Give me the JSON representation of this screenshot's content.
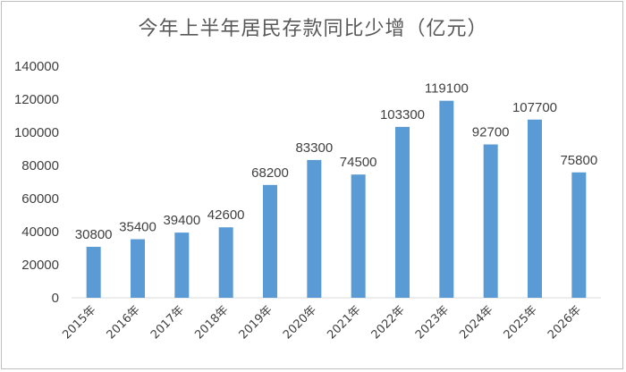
{
  "chart_data": {
    "type": "bar",
    "title": "今年上半年居民存款同比少增（亿元）",
    "categories": [
      "2015年",
      "2016年",
      "2017年",
      "2018年",
      "2019年",
      "2020年",
      "2021年",
      "2022年",
      "2023年",
      "2024年",
      "2025年",
      "2026年"
    ],
    "values": [
      30800,
      35400,
      39400,
      42600,
      68200,
      83300,
      74500,
      103300,
      119100,
      92700,
      107700,
      75800
    ],
    "data_labels": [
      "30800",
      "35400",
      "39400",
      "42600",
      "68200",
      "83300",
      "74500",
      "103300",
      "119100",
      "92700",
      "107700",
      "75800"
    ],
    "yticks": [
      "0",
      "20000",
      "40000",
      "60000",
      "80000",
      "100000",
      "120000",
      "140000"
    ],
    "ylim": [
      0,
      140000
    ],
    "xlabel": "",
    "ylabel": "",
    "grid": false,
    "legend": "none",
    "colors": {
      "bar": "#5b9bd5",
      "axis": "#d9d9d9",
      "text": "#404040",
      "title": "#595959"
    }
  }
}
